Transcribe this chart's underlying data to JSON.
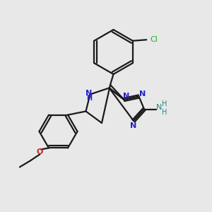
{
  "background_color": "#e8e8e8",
  "bond_color": "#1a1a1a",
  "n_color": "#2222cc",
  "o_color": "#cc2222",
  "cl_color": "#22aa22",
  "nh2_color": "#228888",
  "figsize": [
    3.0,
    3.0
  ],
  "dpi": 100,
  "xlim": [
    0,
    10
  ],
  "ylim": [
    0,
    10
  ]
}
